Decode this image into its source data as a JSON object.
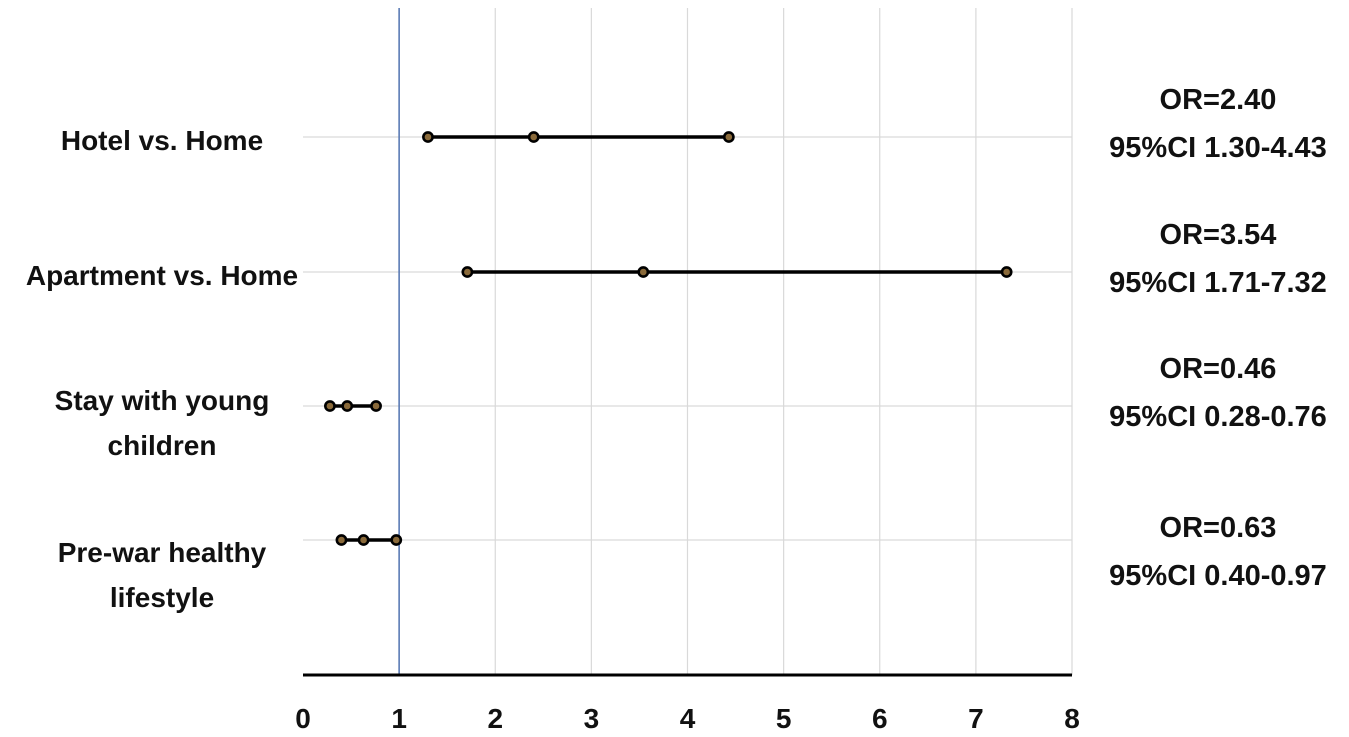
{
  "chart_data": {
    "type": "forest",
    "title": "",
    "xlabel": "",
    "ylabel": "",
    "xlim": [
      0,
      8
    ],
    "x_ticks": [
      "0",
      "1",
      "2",
      "3",
      "4",
      "5",
      "6",
      "7",
      "8"
    ],
    "reference_line": 1,
    "grid": true,
    "rows": [
      {
        "label_lines": [
          "Hotel vs. Home"
        ],
        "or": 2.4,
        "ci_low": 1.3,
        "ci_high": 4.43,
        "ann_or": "OR=2.40",
        "ann_ci": "95%CI 1.30-4.43"
      },
      {
        "label_lines": [
          "Apartment vs. Home"
        ],
        "or": 3.54,
        "ci_low": 1.71,
        "ci_high": 7.32,
        "ann_or": "OR=3.54",
        "ann_ci": "95%CI 1.71-7.32"
      },
      {
        "label_lines": [
          "Stay with young",
          "children"
        ],
        "or": 0.46,
        "ci_low": 0.28,
        "ci_high": 0.76,
        "ann_or": "OR=0.46",
        "ann_ci": "95%CI 0.28-0.76"
      },
      {
        "label_lines": [
          "Pre-war healthy",
          "lifestyle"
        ],
        "or": 0.63,
        "ci_low": 0.4,
        "ci_high": 0.97,
        "ann_or": "OR=0.63",
        "ann_ci": "95%CI 0.40-0.97"
      }
    ],
    "colors": {
      "grid": "#d9d9d9",
      "reference_line": "#5b7bb5",
      "axis": "#000000",
      "interval": "#000000",
      "marker_fill": "#8a6a3a",
      "text": "#111111"
    }
  }
}
